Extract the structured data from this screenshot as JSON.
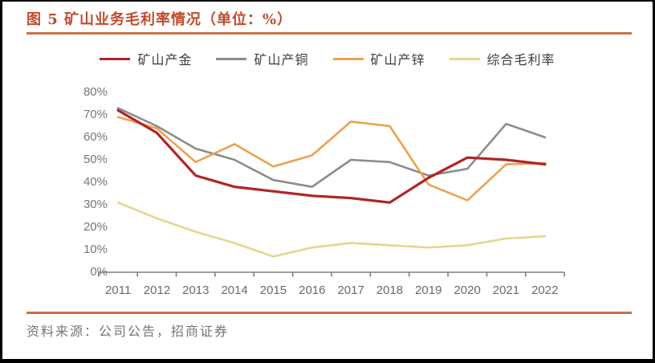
{
  "header": {
    "title": "图 5 矿山业务毛利率情况（单位：%）",
    "title_color": "#BF4B2B",
    "rule_color": "#C8714A"
  },
  "footer": {
    "source": "资料来源：公司公告，招商证券"
  },
  "chart_data": {
    "type": "line",
    "title": "图 5 矿山业务毛利率情况（单位：%）",
    "categories": [
      "2011",
      "2012",
      "2013",
      "2014",
      "2015",
      "2016",
      "2017",
      "2018",
      "2019",
      "2020",
      "2021",
      "2022"
    ],
    "series": [
      {
        "name": "矿山产金",
        "color": "#B22426",
        "values": [
          72,
          62,
          43,
          38,
          36,
          34,
          33,
          31,
          42,
          51,
          50,
          48
        ]
      },
      {
        "name": "矿山产铜",
        "color": "#8C8C8C",
        "values": [
          73,
          65,
          55,
          50,
          41,
          38,
          50,
          49,
          43,
          46,
          66,
          60
        ]
      },
      {
        "name": "矿山产锌",
        "color": "#EDA150",
        "values": [
          69,
          64,
          49,
          57,
          47,
          52,
          67,
          65,
          39,
          32,
          48,
          48.5
        ]
      },
      {
        "name": "综合毛利率",
        "color": "#E3D78E",
        "values": [
          31,
          24,
          18,
          13,
          7,
          11,
          13,
          12,
          11,
          12,
          15,
          16
        ]
      }
    ],
    "ylim": [
      0,
      80
    ],
    "ytick_step": 10,
    "yticks": [
      "80%",
      "70%",
      "60%",
      "50%",
      "40%",
      "30%",
      "20%",
      "10%",
      "0%"
    ],
    "ylabel": "",
    "xlabel": "",
    "grid": false,
    "legend_position": "top",
    "axis_color": "#7F7F7F"
  }
}
